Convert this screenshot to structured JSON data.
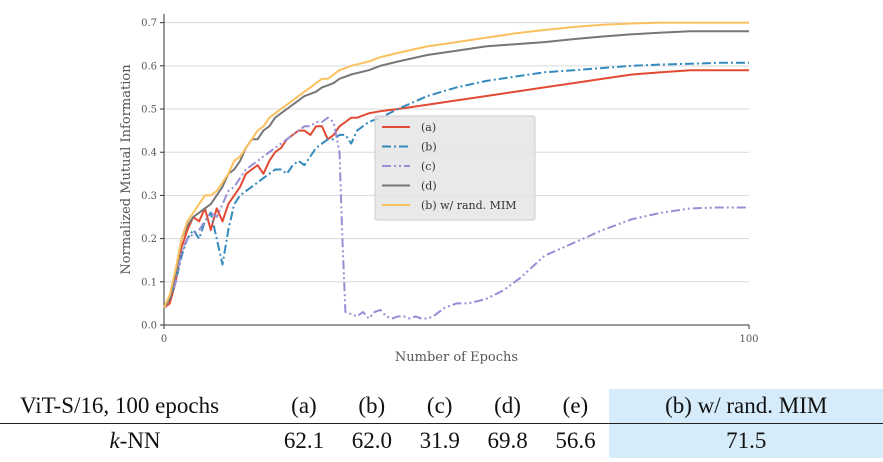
{
  "chart_data": {
    "type": "line",
    "xlabel": "Number of Epochs",
    "ylabel": "Normalized Mutual Information",
    "xlim": [
      0,
      100
    ],
    "ylim": [
      0,
      0.72
    ],
    "x_ticks": [
      "0",
      "100"
    ],
    "x_tick_values": [
      0,
      100
    ],
    "y_ticks": [
      "0.0",
      "0.1",
      "0.2",
      "0.3",
      "0.4",
      "0.5",
      "0.6",
      "0.7"
    ],
    "y_tick_values": [
      0,
      0.1,
      0.2,
      0.3,
      0.4,
      0.5,
      0.6,
      0.7
    ],
    "grid": "horizontal",
    "legend_position": "center",
    "series": [
      {
        "name": "(a)",
        "color": "#e24a33",
        "dash": "solid",
        "x": [
          0,
          1,
          2,
          3,
          4,
          5,
          6,
          7,
          8,
          9,
          10,
          11,
          12,
          13,
          14,
          15,
          16,
          17,
          18,
          19,
          20,
          21,
          22,
          23,
          24,
          25,
          26,
          27,
          28,
          29,
          30,
          31,
          32,
          33,
          35,
          37,
          40,
          45,
          50,
          55,
          60,
          65,
          70,
          75,
          80,
          85,
          90,
          95,
          100
        ],
        "y": [
          0.04,
          0.05,
          0.1,
          0.18,
          0.22,
          0.25,
          0.24,
          0.27,
          0.22,
          0.27,
          0.24,
          0.28,
          0.3,
          0.32,
          0.35,
          0.36,
          0.37,
          0.35,
          0.38,
          0.4,
          0.41,
          0.43,
          0.44,
          0.45,
          0.45,
          0.44,
          0.46,
          0.46,
          0.43,
          0.44,
          0.46,
          0.47,
          0.48,
          0.48,
          0.49,
          0.495,
          0.5,
          0.51,
          0.52,
          0.53,
          0.54,
          0.55,
          0.56,
          0.57,
          0.58,
          0.585,
          0.59,
          0.59,
          0.59
        ]
      },
      {
        "name": "(b)",
        "color": "#348abd",
        "dash": "dashdot",
        "x": [
          0,
          1,
          2,
          3,
          4,
          5,
          6,
          7,
          8,
          9,
          10,
          11,
          12,
          13,
          14,
          15,
          16,
          17,
          18,
          19,
          20,
          21,
          22,
          23,
          24,
          25,
          26,
          27,
          28,
          29,
          30,
          31,
          32,
          33,
          35,
          37,
          40,
          45,
          50,
          55,
          60,
          65,
          70,
          75,
          80,
          85,
          90,
          95,
          100
        ],
        "y": [
          0.04,
          0.06,
          0.1,
          0.16,
          0.2,
          0.22,
          0.2,
          0.24,
          0.26,
          0.2,
          0.14,
          0.22,
          0.28,
          0.3,
          0.31,
          0.32,
          0.33,
          0.34,
          0.35,
          0.36,
          0.36,
          0.35,
          0.37,
          0.38,
          0.37,
          0.39,
          0.41,
          0.42,
          0.43,
          0.43,
          0.44,
          0.44,
          0.42,
          0.45,
          0.47,
          0.48,
          0.5,
          0.53,
          0.55,
          0.565,
          0.575,
          0.585,
          0.59,
          0.595,
          0.6,
          0.603,
          0.605,
          0.607,
          0.607
        ]
      },
      {
        "name": "(c)",
        "color": "#988ed5",
        "dash": "dashdotdot",
        "x": [
          0,
          1,
          2,
          3,
          4,
          5,
          6,
          7,
          8,
          9,
          10,
          11,
          12,
          13,
          14,
          15,
          16,
          17,
          18,
          19,
          20,
          21,
          22,
          23,
          24,
          25,
          26,
          27,
          28,
          29,
          30,
          30.5,
          31,
          32,
          33,
          34,
          35,
          36,
          37,
          38,
          39,
          40,
          41,
          42,
          43,
          44,
          45,
          46,
          48,
          50,
          52,
          55,
          58,
          61,
          65,
          70,
          75,
          80,
          85,
          90,
          95,
          100
        ],
        "y": [
          0.04,
          0.06,
          0.1,
          0.17,
          0.2,
          0.21,
          0.22,
          0.24,
          0.26,
          0.25,
          0.28,
          0.31,
          0.32,
          0.34,
          0.36,
          0.37,
          0.38,
          0.39,
          0.4,
          0.41,
          0.42,
          0.43,
          0.44,
          0.45,
          0.46,
          0.46,
          0.47,
          0.47,
          0.48,
          0.47,
          0.4,
          0.2,
          0.03,
          0.025,
          0.02,
          0.03,
          0.015,
          0.03,
          0.035,
          0.02,
          0.015,
          0.02,
          0.02,
          0.015,
          0.02,
          0.015,
          0.015,
          0.02,
          0.04,
          0.05,
          0.05,
          0.06,
          0.08,
          0.11,
          0.16,
          0.19,
          0.22,
          0.245,
          0.26,
          0.27,
          0.272,
          0.272
        ]
      },
      {
        "name": "(d)",
        "color": "#777777",
        "dash": "solid",
        "x": [
          0,
          1,
          2,
          3,
          4,
          5,
          6,
          7,
          8,
          9,
          10,
          11,
          12,
          13,
          14,
          15,
          16,
          17,
          18,
          19,
          20,
          21,
          22,
          23,
          24,
          25,
          26,
          27,
          28,
          29,
          30,
          32,
          35,
          37,
          40,
          45,
          50,
          55,
          60,
          65,
          70,
          75,
          80,
          85,
          90,
          95,
          100
        ],
        "y": [
          0.04,
          0.06,
          0.12,
          0.2,
          0.23,
          0.25,
          0.26,
          0.27,
          0.28,
          0.3,
          0.32,
          0.35,
          0.36,
          0.38,
          0.41,
          0.43,
          0.43,
          0.45,
          0.46,
          0.48,
          0.49,
          0.5,
          0.51,
          0.52,
          0.53,
          0.535,
          0.54,
          0.55,
          0.555,
          0.56,
          0.57,
          0.58,
          0.59,
          0.6,
          0.61,
          0.625,
          0.635,
          0.645,
          0.65,
          0.655,
          0.662,
          0.668,
          0.673,
          0.677,
          0.68,
          0.68,
          0.68
        ]
      },
      {
        "name": "(b) w/ rand. MIM",
        "color": "#fbc15e",
        "dash": "solid",
        "x": [
          0,
          1,
          2,
          3,
          4,
          5,
          6,
          7,
          8,
          9,
          10,
          11,
          12,
          13,
          14,
          15,
          16,
          17,
          18,
          19,
          20,
          21,
          22,
          23,
          24,
          25,
          26,
          27,
          28,
          29,
          30,
          32,
          35,
          37,
          40,
          45,
          50,
          55,
          60,
          65,
          70,
          75,
          80,
          85,
          90,
          95,
          100
        ],
        "y": [
          0.04,
          0.07,
          0.13,
          0.2,
          0.24,
          0.26,
          0.28,
          0.3,
          0.3,
          0.31,
          0.33,
          0.35,
          0.38,
          0.39,
          0.41,
          0.43,
          0.45,
          0.46,
          0.48,
          0.49,
          0.5,
          0.51,
          0.52,
          0.53,
          0.54,
          0.55,
          0.56,
          0.57,
          0.57,
          0.58,
          0.59,
          0.6,
          0.61,
          0.62,
          0.63,
          0.645,
          0.655,
          0.665,
          0.675,
          0.683,
          0.69,
          0.695,
          0.698,
          0.7,
          0.7,
          0.7,
          0.7
        ]
      }
    ]
  },
  "table": {
    "header": [
      "ViT-S/16, 100 epochs",
      "(a)",
      "(b)",
      "(c)",
      "(d)",
      "(e)",
      "(b) w/ rand. MIM"
    ],
    "row_label_prefix": "k",
    "row_label_suffix": "-NN",
    "row_values": [
      "62.1",
      "62.0",
      "31.9",
      "69.8",
      "56.6",
      "71.5"
    ],
    "highlight_color": "#d6ecfa"
  }
}
